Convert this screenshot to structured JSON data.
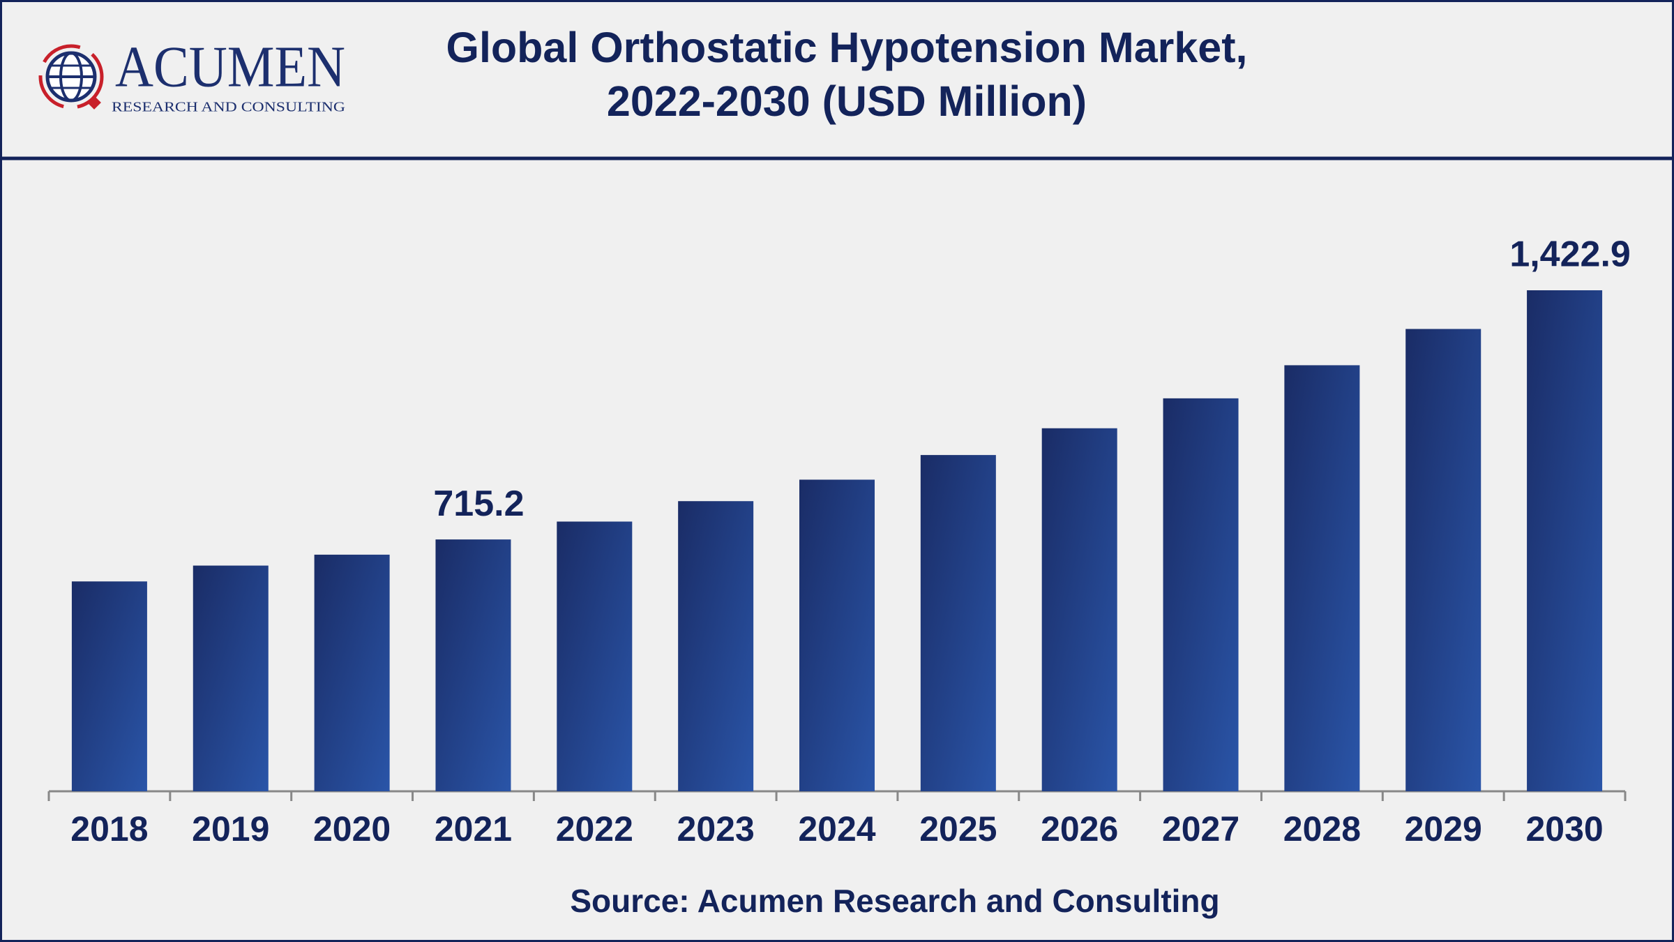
{
  "logo": {
    "name": "ACUMEN",
    "tagline": "RESEARCH AND CONSULTING"
  },
  "chart_data": {
    "type": "bar",
    "title": [
      "Global Orthostatic Hypotension Market,",
      "2022-2030 (USD Million)"
    ],
    "categories": [
      "2018",
      "2019",
      "2020",
      "2021",
      "2022",
      "2023",
      "2024",
      "2025",
      "2026",
      "2027",
      "2028",
      "2029",
      "2030"
    ],
    "values": [
      596,
      641,
      672,
      715.2,
      766,
      824,
      885,
      955,
      1031,
      1116,
      1210,
      1313,
      1422.9
    ],
    "value_labels": [
      null,
      null,
      null,
      "715.2",
      null,
      null,
      null,
      null,
      null,
      null,
      null,
      null,
      "1,422.9"
    ],
    "color": "#22468f",
    "source": "Source: Acumen Research and Consulting"
  }
}
